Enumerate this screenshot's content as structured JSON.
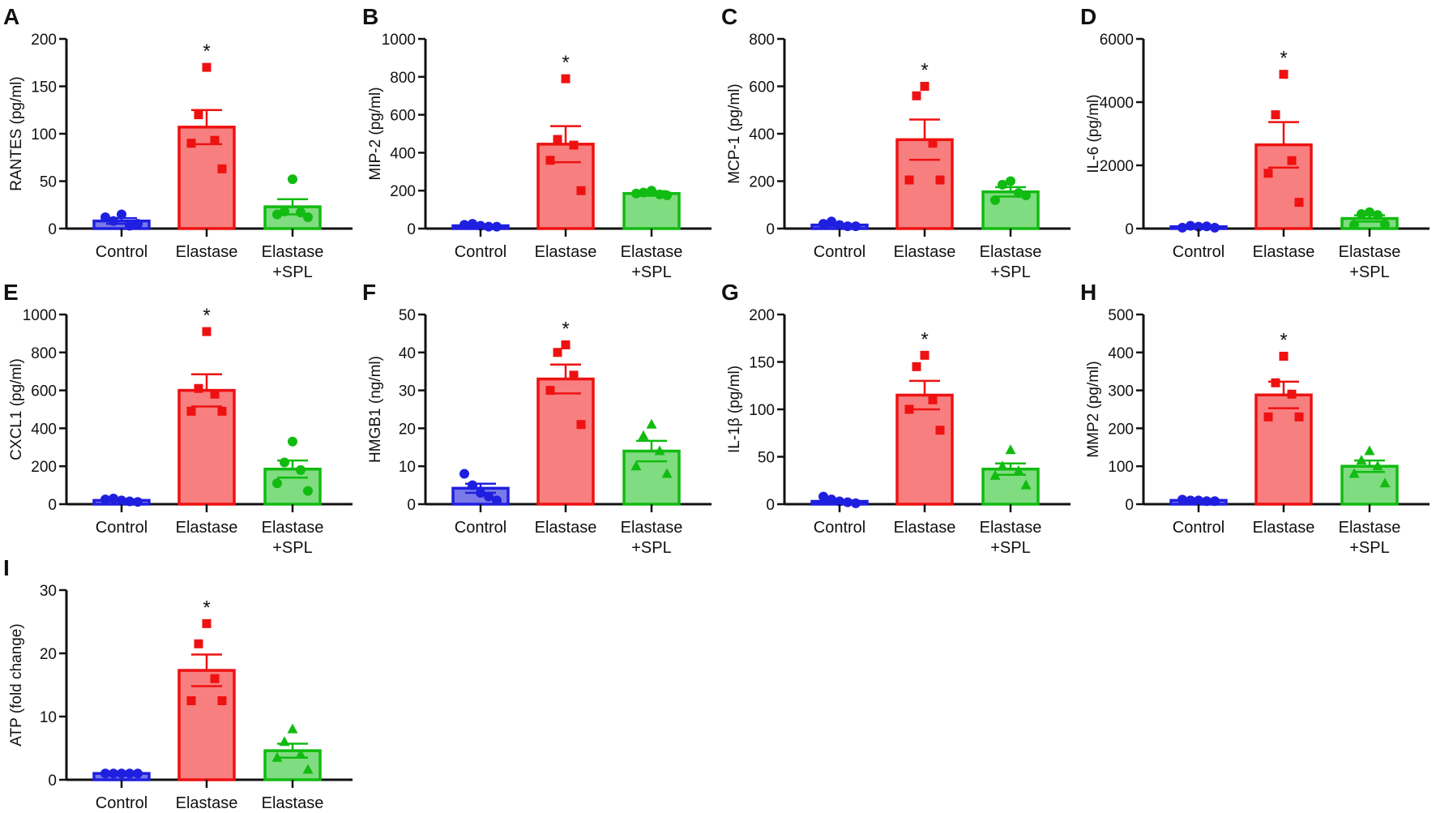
{
  "colors": {
    "control": "#1f1fe0",
    "control_fill": "#7a7ae8",
    "elastase": "#ee1111",
    "elastase_fill": "#f87f7f",
    "spl": "#11bb11",
    "spl_fill": "#80dc80",
    "axis": "#111111"
  },
  "chart_data": [
    {
      "type": "bar",
      "panel": "A",
      "ylabel": "RANTES (pg/ml)",
      "ylim": [
        0,
        200
      ],
      "yticks": [
        0,
        50,
        100,
        150,
        200
      ],
      "categories": [
        "Control",
        "Elastase",
        "Elastase\n+SPL"
      ],
      "significance": "*",
      "spl_marker": "circle",
      "series": [
        {
          "name": "Control",
          "mean": 8,
          "sem": 3,
          "points": [
            12,
            8,
            15,
            3,
            5
          ]
        },
        {
          "name": "Elastase",
          "mean": 107,
          "sem": 18,
          "points": [
            170,
            120,
            93,
            90,
            63
          ]
        },
        {
          "name": "Elastase+SPL",
          "mean": 23,
          "sem": 8,
          "points": [
            52,
            18,
            17,
            15,
            12
          ]
        }
      ]
    },
    {
      "type": "bar",
      "panel": "B",
      "ylabel": "MIP-2 (pg/ml)",
      "ylim": [
        0,
        1000
      ],
      "yticks": [
        0,
        200,
        400,
        600,
        800,
        1000
      ],
      "categories": [
        "Control",
        "Elastase",
        "Elastase\n+SPL"
      ],
      "significance": "*",
      "spl_marker": "circle",
      "series": [
        {
          "name": "Control",
          "mean": 15,
          "sem": 3,
          "points": [
            20,
            25,
            15,
            10,
            10
          ]
        },
        {
          "name": "Elastase",
          "mean": 445,
          "sem": 95,
          "points": [
            790,
            470,
            440,
            360,
            200
          ]
        },
        {
          "name": "Elastase+SPL",
          "mean": 185,
          "sem": 12,
          "points": [
            200,
            190,
            180,
            185,
            175
          ]
        }
      ]
    },
    {
      "type": "bar",
      "panel": "C",
      "ylabel": "MCP-1 (pg/ml)",
      "ylim": [
        0,
        800
      ],
      "yticks": [
        0,
        200,
        400,
        600,
        800
      ],
      "categories": [
        "Control",
        "Elastase",
        "Elastase\n+SPL"
      ],
      "significance": "*",
      "spl_marker": "circle",
      "series": [
        {
          "name": "Control",
          "mean": 15,
          "sem": 4,
          "points": [
            20,
            30,
            15,
            10,
            10
          ]
        },
        {
          "name": "Elastase",
          "mean": 375,
          "sem": 85,
          "points": [
            600,
            560,
            360,
            205,
            205
          ]
        },
        {
          "name": "Elastase+SPL",
          "mean": 155,
          "sem": 20,
          "points": [
            200,
            185,
            150,
            120,
            140
          ]
        }
      ]
    },
    {
      "type": "bar",
      "panel": "D",
      "ylabel": "IL-6 (pg/ml)",
      "ylim": [
        0,
        6000
      ],
      "yticks": [
        0,
        2000,
        4000,
        6000
      ],
      "categories": [
        "Control",
        "Elastase",
        "Elastase\n+SPL"
      ],
      "significance": "*",
      "spl_marker": "circle",
      "series": [
        {
          "name": "Control",
          "mean": 60,
          "sem": 15,
          "points": [
            30,
            90,
            60,
            70,
            30
          ]
        },
        {
          "name": "Elastase",
          "mean": 2650,
          "sem": 720,
          "points": [
            4880,
            3600,
            2150,
            1750,
            830
          ]
        },
        {
          "name": "Elastase+SPL",
          "mean": 320,
          "sem": 100,
          "points": [
            520,
            460,
            430,
            120,
            130
          ]
        }
      ]
    },
    {
      "type": "bar",
      "panel": "E",
      "ylabel": "CXCL1 (pg/ml)",
      "ylim": [
        0,
        1000
      ],
      "yticks": [
        0,
        200,
        400,
        600,
        800,
        1000
      ],
      "categories": [
        "Control",
        "Elastase",
        "Elastase\n+SPL"
      ],
      "significance": "*",
      "spl_marker": "circle",
      "series": [
        {
          "name": "Control",
          "mean": 20,
          "sem": 4,
          "points": [
            25,
            30,
            20,
            15,
            12
          ]
        },
        {
          "name": "Elastase",
          "mean": 600,
          "sem": 85,
          "points": [
            910,
            610,
            580,
            490,
            490
          ]
        },
        {
          "name": "Elastase+SPL",
          "mean": 185,
          "sem": 45,
          "points": [
            330,
            220,
            180,
            110,
            70
          ]
        }
      ]
    },
    {
      "type": "bar",
      "panel": "F",
      "ylabel": "HMGB1 (ng/ml)",
      "ylim": [
        0,
        50
      ],
      "yticks": [
        0,
        10,
        20,
        30,
        40,
        50
      ],
      "categories": [
        "Control",
        "Elastase",
        "Elastase\n+SPL"
      ],
      "significance": "*",
      "spl_marker": "triangle",
      "series": [
        {
          "name": "Control",
          "mean": 4.2,
          "sem": 1.2,
          "points": [
            8,
            5,
            3,
            2,
            1
          ]
        },
        {
          "name": "Elastase",
          "mean": 33,
          "sem": 3.8,
          "points": [
            42,
            40,
            34,
            30,
            21
          ]
        },
        {
          "name": "Elastase+SPL",
          "mean": 14,
          "sem": 2.7,
          "points": [
            21,
            18,
            14,
            10,
            8
          ]
        }
      ]
    },
    {
      "type": "bar",
      "panel": "G",
      "ylabel": "IL-1β (pg/ml)",
      "ylim": [
        0,
        200
      ],
      "yticks": [
        0,
        50,
        100,
        150,
        200
      ],
      "categories": [
        "Control",
        "Elastase",
        "Elastase\n+SPL"
      ],
      "significance": "*",
      "spl_marker": "triangle",
      "series": [
        {
          "name": "Control",
          "mean": 3,
          "sem": 1,
          "points": [
            8,
            5,
            3,
            2,
            1
          ]
        },
        {
          "name": "Elastase",
          "mean": 115,
          "sem": 15,
          "points": [
            157,
            145,
            110,
            100,
            78
          ]
        },
        {
          "name": "Elastase+SPL",
          "mean": 37,
          "sem": 6,
          "points": [
            57,
            40,
            35,
            30,
            20
          ]
        }
      ]
    },
    {
      "type": "bar",
      "panel": "H",
      "ylabel": "MMP2 (pg/ml)",
      "ylim": [
        0,
        500
      ],
      "yticks": [
        0,
        100,
        200,
        300,
        400,
        500
      ],
      "categories": [
        "Control",
        "Elastase",
        "Elastase\n+SPL"
      ],
      "significance": "*",
      "spl_marker": "triangle",
      "series": [
        {
          "name": "Control",
          "mean": 10,
          "sem": 2,
          "points": [
            12,
            10,
            10,
            8,
            8
          ]
        },
        {
          "name": "Elastase",
          "mean": 288,
          "sem": 35,
          "points": [
            390,
            320,
            290,
            230,
            230
          ]
        },
        {
          "name": "Elastase+SPL",
          "mean": 100,
          "sem": 15,
          "points": [
            140,
            115,
            100,
            80,
            55
          ]
        }
      ]
    },
    {
      "type": "bar",
      "panel": "I",
      "ylabel": "ATP (fold change)",
      "ylim": [
        0,
        30
      ],
      "yticks": [
        0,
        10,
        20,
        30
      ],
      "categories": [
        "Control",
        "Elastase",
        "Elastase\n+SPL"
      ],
      "significance": "*",
      "spl_marker": "triangle",
      "series": [
        {
          "name": "Control",
          "mean": 1,
          "sem": 0.1,
          "points": [
            1,
            1,
            1,
            1,
            1
          ]
        },
        {
          "name": "Elastase",
          "mean": 17.3,
          "sem": 2.5,
          "points": [
            24.7,
            21.5,
            16,
            12.5,
            12.5
          ]
        },
        {
          "name": "Elastase+SPL",
          "mean": 4.6,
          "sem": 1.1,
          "points": [
            8,
            6,
            4,
            3.5,
            1.6
          ]
        }
      ]
    }
  ]
}
